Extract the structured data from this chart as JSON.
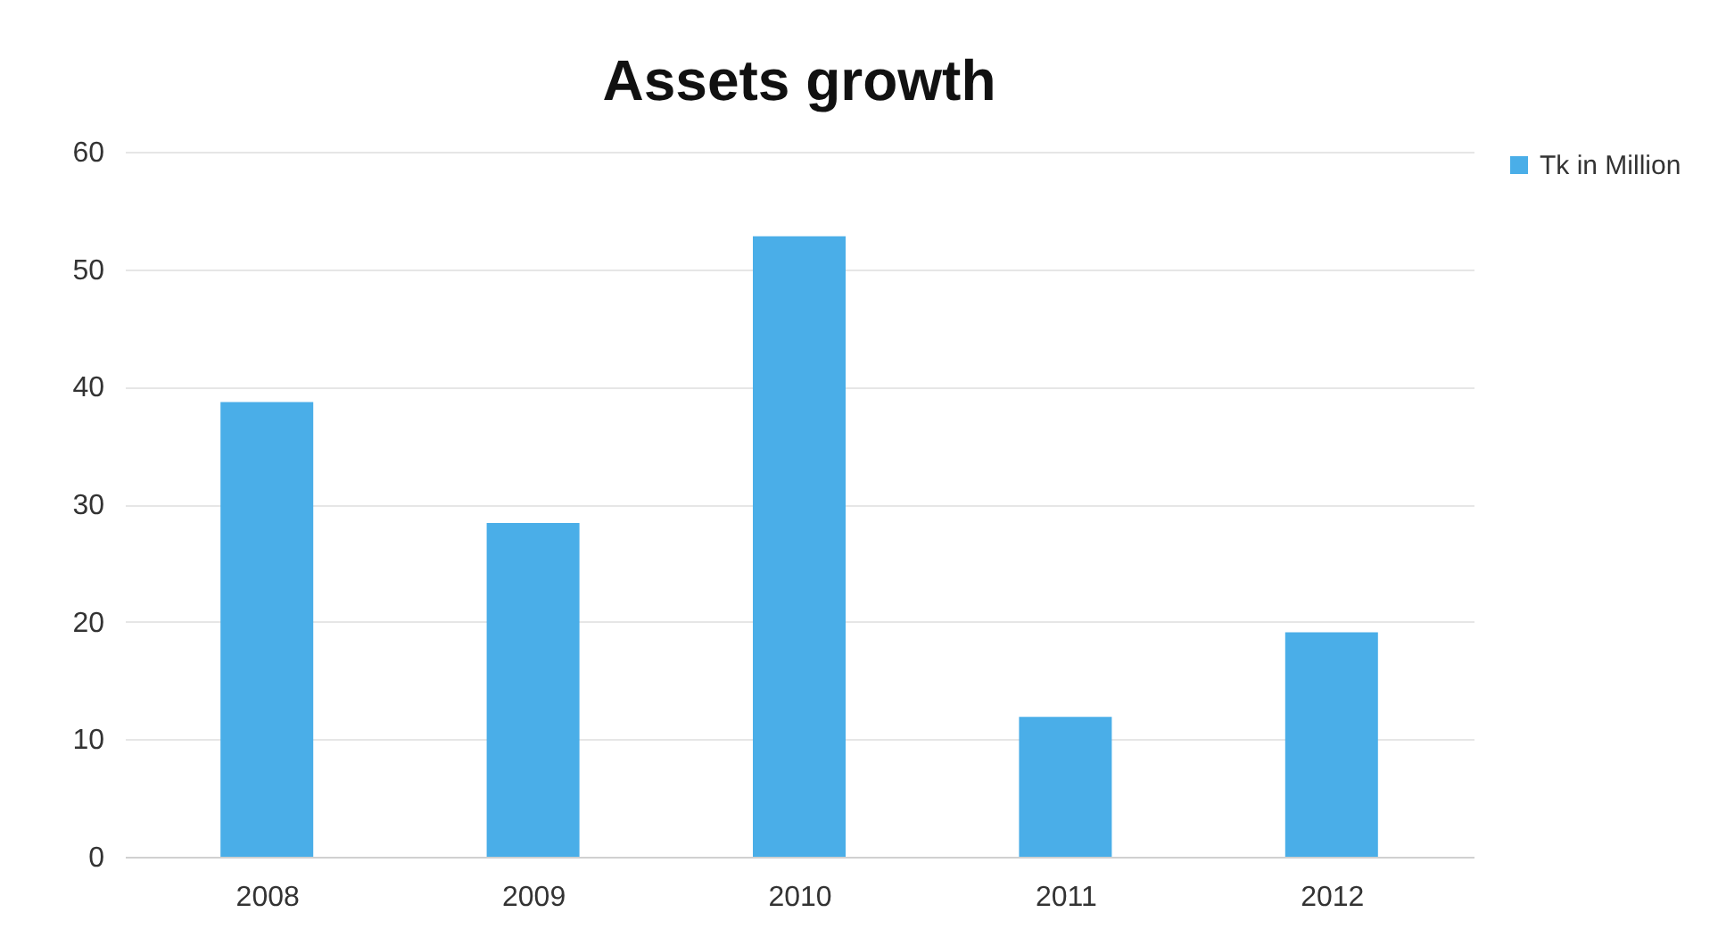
{
  "chart_data": {
    "type": "bar",
    "title": "Assets growth",
    "categories": [
      "2008",
      "2009",
      "2010",
      "2011",
      "2012"
    ],
    "series": [
      {
        "name": "Tk in Million",
        "color": "#4aaee8",
        "values": [
          38.7,
          28.4,
          52.8,
          11.9,
          19.1
        ]
      }
    ],
    "ylim": [
      0,
      60
    ],
    "yticks": [
      0,
      10,
      20,
      30,
      40,
      50,
      60
    ],
    "grid": "y",
    "legend": "right"
  }
}
